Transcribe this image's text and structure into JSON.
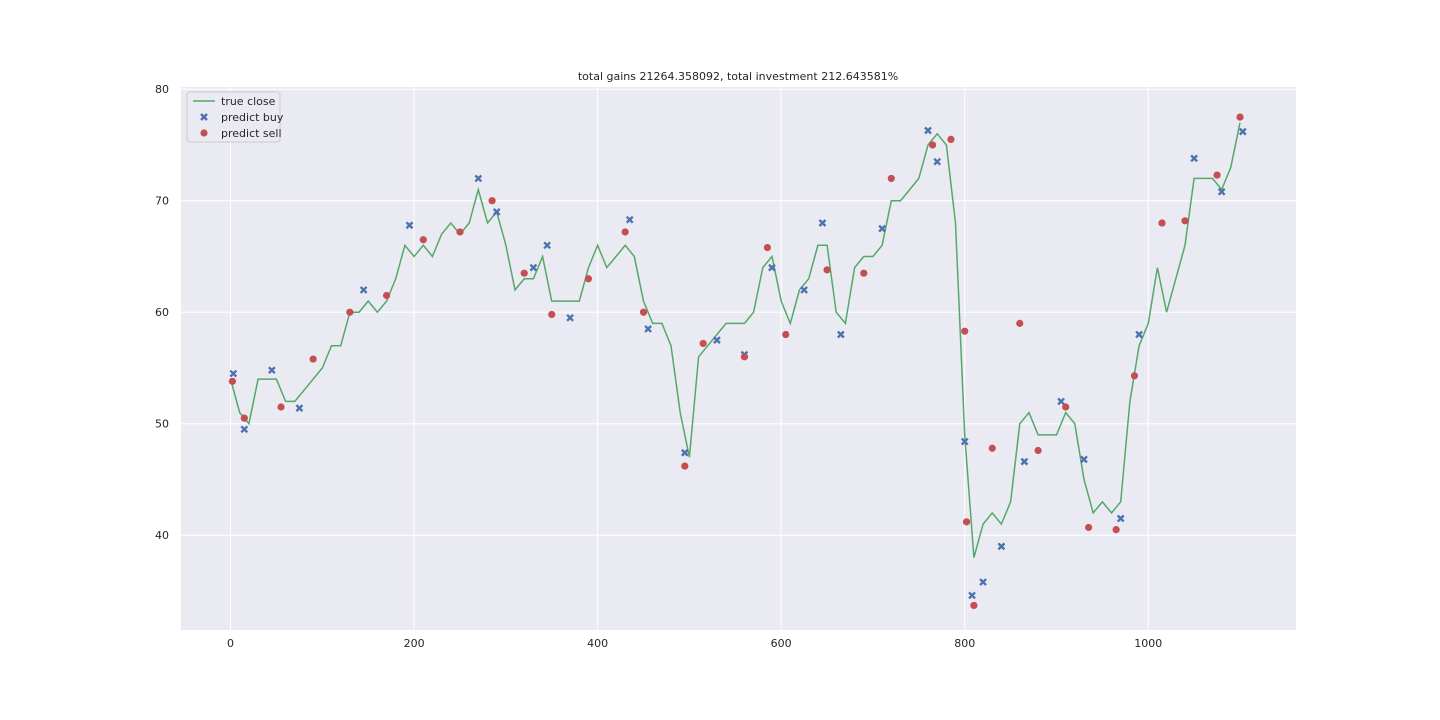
{
  "chart_data": {
    "type": "line",
    "title": "total gains 21264.358092, total investment 212.643581%",
    "xlim": [
      -54,
      1161
    ],
    "ylim": [
      31.5,
      80.2
    ],
    "xticks": [
      0,
      200,
      400,
      600,
      800,
      1000
    ],
    "yticks": [
      40,
      50,
      60,
      70,
      80
    ],
    "grid": true,
    "legend": "upper left",
    "series": [
      {
        "name": "true close",
        "kind": "line",
        "color": "#55a868",
        "x": [
          0,
          10,
          20,
          30,
          40,
          50,
          60,
          70,
          80,
          90,
          100,
          110,
          120,
          130,
          140,
          150,
          160,
          170,
          180,
          190,
          200,
          210,
          220,
          230,
          240,
          250,
          260,
          270,
          280,
          290,
          300,
          310,
          320,
          330,
          340,
          350,
          360,
          370,
          380,
          390,
          400,
          410,
          420,
          430,
          440,
          450,
          460,
          470,
          480,
          490,
          500,
          510,
          520,
          530,
          540,
          550,
          560,
          570,
          580,
          590,
          600,
          610,
          620,
          630,
          640,
          650,
          660,
          670,
          680,
          690,
          700,
          710,
          720,
          730,
          740,
          750,
          760,
          770,
          780,
          790,
          800,
          810,
          820,
          830,
          840,
          850,
          860,
          870,
          880,
          890,
          900,
          910,
          920,
          930,
          940,
          950,
          960,
          970,
          980,
          990,
          1000,
          1010,
          1020,
          1030,
          1040,
          1050,
          1060,
          1070,
          1080,
          1090,
          1100
        ],
        "values": [
          54,
          51,
          50,
          54,
          54,
          54,
          52,
          52,
          53,
          54,
          55,
          57,
          57,
          60,
          60,
          61,
          60,
          61,
          63,
          66,
          65,
          66,
          65,
          67,
          68,
          67,
          68,
          71,
          68,
          69,
          66,
          62,
          63,
          63,
          65,
          61,
          61,
          61,
          61,
          64,
          66,
          64,
          65,
          66,
          65,
          61,
          59,
          59,
          57,
          51,
          47,
          56,
          57,
          58,
          59,
          59,
          59,
          60,
          64,
          65,
          61,
          59,
          62,
          63,
          66,
          66,
          60,
          59,
          64,
          65,
          65,
          66,
          70,
          70,
          71,
          72,
          75,
          76,
          75,
          68,
          49,
          38,
          41,
          42,
          41,
          43,
          50,
          51,
          49,
          49,
          49,
          51,
          50,
          45,
          42,
          43,
          42,
          43,
          52,
          57,
          59,
          64,
          60,
          63,
          66,
          72,
          72,
          72,
          71,
          73,
          77
        ]
      },
      {
        "name": "predict buy",
        "kind": "scatter",
        "marker": "x",
        "color": "#4c72b0",
        "x": [
          3,
          15,
          45,
          75,
          145,
          195,
          270,
          290,
          330,
          345,
          370,
          435,
          455,
          495,
          530,
          560,
          590,
          625,
          645,
          665,
          710,
          760,
          770,
          800,
          808,
          820,
          840,
          865,
          905,
          930,
          970,
          990,
          1050,
          1080,
          1103
        ],
        "values": [
          54.5,
          49.5,
          54.8,
          51.4,
          62,
          67.8,
          72,
          69,
          64,
          66,
          59.5,
          68.3,
          58.5,
          47.4,
          57.5,
          56.2,
          64,
          62,
          68,
          58,
          67.5,
          76.3,
          73.5,
          48.4,
          34.6,
          35.8,
          39,
          46.6,
          52,
          46.8,
          41.5,
          58,
          73.8,
          70.8,
          76.2
        ]
      },
      {
        "name": "predict sell",
        "kind": "scatter",
        "marker": "o",
        "color": "#c44e52",
        "x": [
          2,
          15,
          55,
          90,
          130,
          170,
          210,
          250,
          285,
          320,
          350,
          390,
          430,
          450,
          495,
          515,
          560,
          585,
          605,
          650,
          690,
          720,
          765,
          785,
          800,
          802,
          810,
          830,
          860,
          880,
          910,
          935,
          965,
          985,
          1015,
          1040,
          1075,
          1100
        ],
        "values": [
          53.8,
          50.5,
          51.5,
          55.8,
          60,
          61.5,
          66.5,
          67.2,
          70,
          63.5,
          59.8,
          63,
          67.2,
          60,
          46.2,
          57.2,
          56,
          65.8,
          58,
          63.8,
          63.5,
          72,
          75,
          75.5,
          58.3,
          41.2,
          33.7,
          47.8,
          59,
          47.6,
          51.5,
          40.7,
          40.5,
          54.3,
          68,
          68.2,
          72.3,
          77.5
        ]
      }
    ]
  }
}
